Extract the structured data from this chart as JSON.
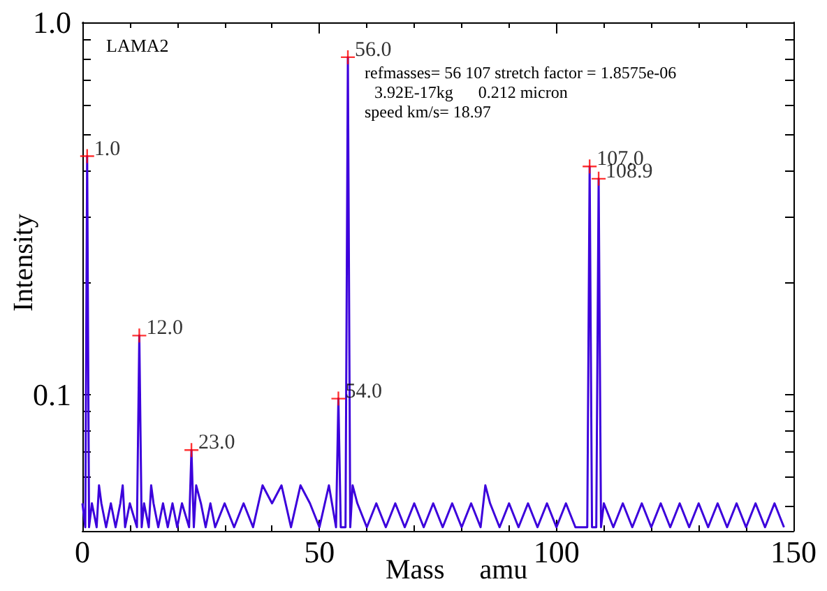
{
  "chart_data": {
    "type": "line",
    "xlabel": "Mass     amu",
    "ylabel": "Intensity",
    "log": "y",
    "grid": false,
    "xlim": [
      0,
      150
    ],
    "xticks": [
      0,
      50,
      100,
      150
    ],
    "ylim": [
      0.043,
      1
    ],
    "yticks": [
      {
        "value": 0.05,
        "label": null
      },
      {
        "value": 0.06,
        "label": null
      },
      {
        "value": 0.07,
        "label": null
      },
      {
        "value": 0.08,
        "label": null
      },
      {
        "value": 0.09,
        "label": null
      },
      {
        "value": 0.1,
        "label": "0.1"
      },
      {
        "value": 0.2,
        "label": null
      },
      {
        "value": 0.3,
        "label": null
      },
      {
        "value": 0.4,
        "label": null
      },
      {
        "value": 0.5,
        "label": null
      },
      {
        "value": 0.6,
        "label": null
      },
      {
        "value": 0.7,
        "label": null
      },
      {
        "value": 0.8,
        "label": null
      },
      {
        "value": 0.9,
        "label": null
      },
      {
        "value": 1,
        "label": "1.0"
      }
    ],
    "series": [
      {
        "type": "line",
        "color": "#3c00dc",
        "marker": "none",
        "x": [
          0,
          0.6,
          1,
          1.4,
          2,
          3,
          3.5,
          4,
          5,
          6,
          7,
          8,
          8.5,
          9,
          10,
          11.5,
          12,
          12.5,
          13,
          14,
          14.5,
          15,
          16,
          17,
          18,
          19,
          20,
          21,
          22.5,
          23,
          23.5,
          24,
          25,
          26,
          27,
          28,
          30,
          32,
          34,
          36,
          38,
          40,
          42,
          44,
          46,
          48,
          50,
          52,
          53.5,
          54,
          54.5,
          55.5,
          56,
          56.5,
          57,
          58,
          60,
          62,
          64,
          66,
          68,
          70,
          72,
          74,
          76,
          78,
          80,
          82,
          84,
          85,
          86,
          88,
          90,
          92,
          94,
          96,
          98,
          100,
          102,
          104,
          106.5,
          107,
          107.5,
          108.4,
          108.9,
          109.4,
          110,
          112,
          114,
          116,
          118,
          120,
          122,
          124,
          126,
          128,
          130,
          132,
          134,
          136,
          138,
          140,
          142,
          144,
          146,
          148
        ],
        "values": [
          0.051,
          0.044,
          0.437,
          0.044,
          0.051,
          0.044,
          0.057,
          0.051,
          0.044,
          0.051,
          0.044,
          0.051,
          0.057,
          0.044,
          0.051,
          0.044,
          0.144,
          0.044,
          0.051,
          0.044,
          0.057,
          0.051,
          0.044,
          0.051,
          0.044,
          0.051,
          0.044,
          0.051,
          0.044,
          0.0709,
          0.044,
          0.057,
          0.051,
          0.044,
          0.051,
          0.044,
          0.051,
          0.044,
          0.051,
          0.044,
          0.057,
          0.051,
          0.057,
          0.044,
          0.057,
          0.051,
          0.044,
          0.057,
          0.044,
          0.0975,
          0.044,
          0.044,
          0.806,
          0.044,
          0.057,
          0.051,
          0.044,
          0.051,
          0.044,
          0.051,
          0.044,
          0.051,
          0.044,
          0.051,
          0.044,
          0.051,
          0.044,
          0.051,
          0.044,
          0.057,
          0.051,
          0.044,
          0.051,
          0.044,
          0.051,
          0.044,
          0.051,
          0.044,
          0.051,
          0.044,
          0.044,
          0.41,
          0.044,
          0.044,
          0.38,
          0.044,
          0.051,
          0.044,
          0.051,
          0.044,
          0.051,
          0.044,
          0.051,
          0.044,
          0.051,
          0.044,
          0.051,
          0.044,
          0.051,
          0.044,
          0.051,
          0.044,
          0.051,
          0.044,
          0.051,
          0.044
        ]
      },
      {
        "type": "scatter",
        "color": "#ff0000",
        "marker": "cross",
        "x": [
          1,
          12,
          23,
          54,
          56,
          107,
          108.9
        ],
        "values": [
          0.437,
          0.144,
          0.0709,
          0.0975,
          0.806,
          0.41,
          0.38
        ]
      }
    ],
    "annotations": [
      "LAMA2",
      "refmasses= 56 107 stretch factor = 1.8575e-06",
      "3.92E-17kg      0.212 micron",
      "speed km/s= 18.97",
      {
        "text": "1.0",
        "x": 1,
        "y": 0.437
      },
      {
        "text": "12.0",
        "x": 12,
        "y": 0.144
      },
      {
        "text": "23.0",
        "x": 23,
        "y": 0.0709
      },
      {
        "text": "54.0",
        "x": 54,
        "y": 0.0975
      },
      {
        "text": "56.0",
        "x": 56,
        "y": 0.806
      },
      {
        "text": "107.0",
        "x": 107,
        "y": 0.41
      },
      {
        "text": "108.9",
        "x": 108.9,
        "y": 0.38
      }
    ]
  }
}
